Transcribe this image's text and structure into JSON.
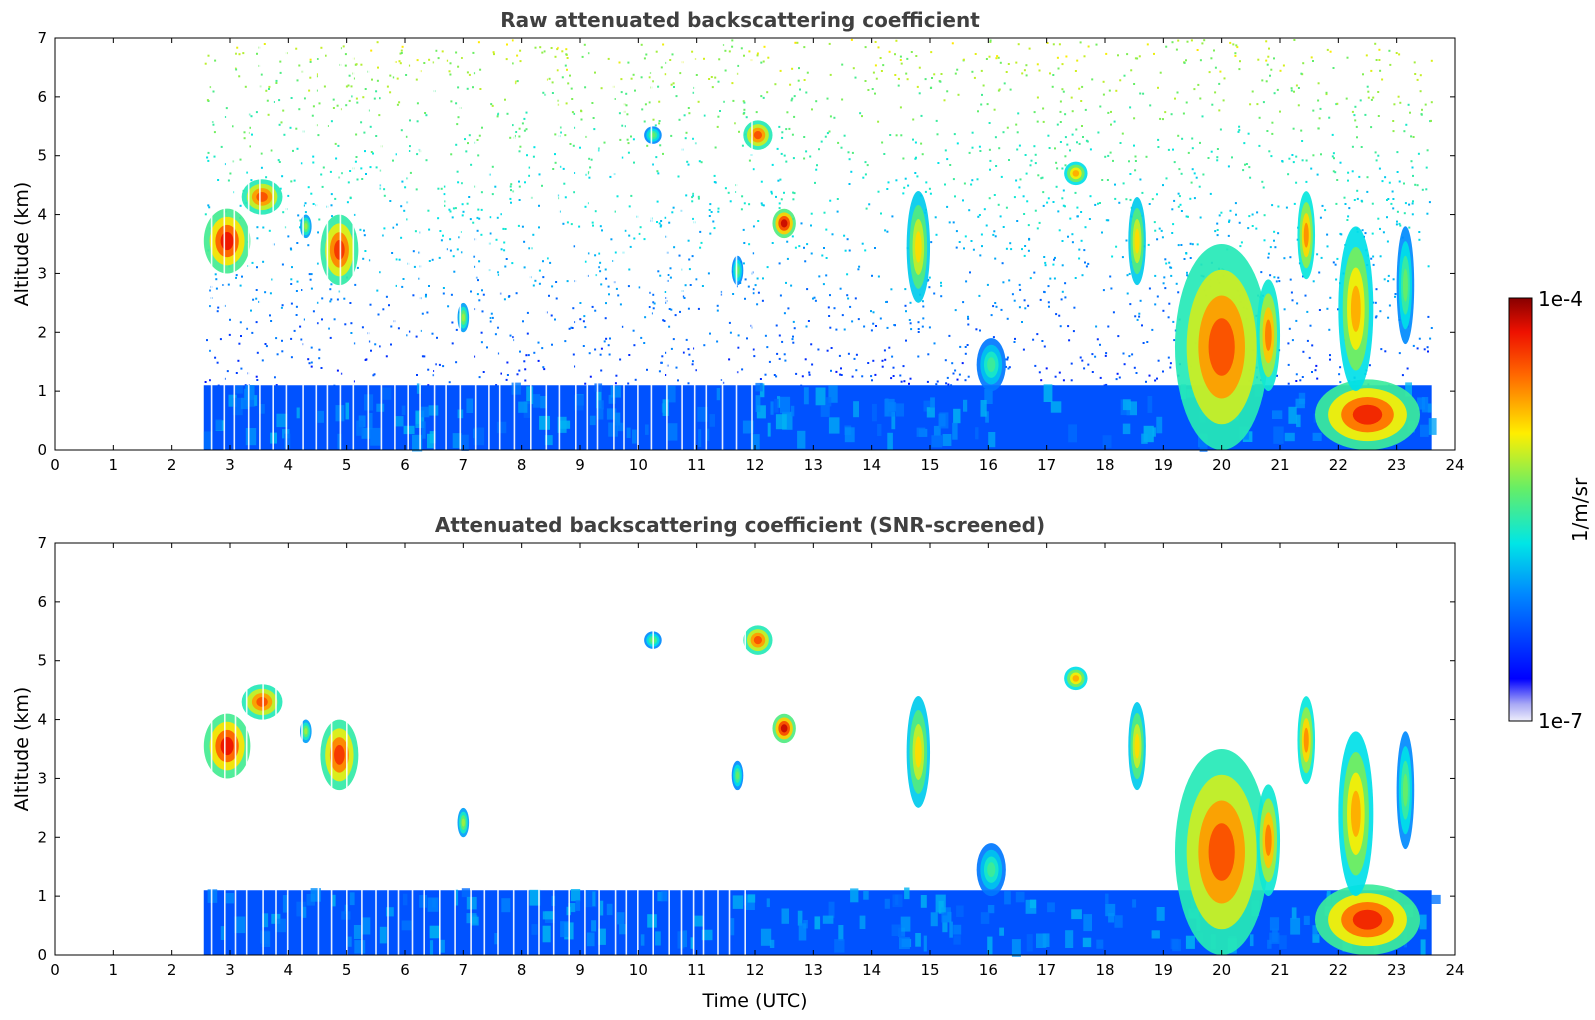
{
  "chart_data": [
    {
      "type": "heatmap",
      "title": "Raw attenuated backscattering coefficient",
      "xlabel": "",
      "ylabel": "Altitude (km)",
      "xlim": [
        0,
        24
      ],
      "ylim": [
        0,
        7
      ],
      "xticks": [
        "0",
        "1",
        "2",
        "3",
        "4",
        "5",
        "6",
        "7",
        "8",
        "9",
        "10",
        "11",
        "12",
        "13",
        "14",
        "15",
        "16",
        "17",
        "18",
        "19",
        "20",
        "21",
        "22",
        "23",
        "24"
      ],
      "yticks": [
        "0",
        "1",
        "2",
        "3",
        "4",
        "5",
        "6",
        "7"
      ],
      "data_start_hour": 2.55,
      "data_end_hour": 23.6,
      "noise_background": true,
      "features": [
        {
          "t0": 2.55,
          "t1": 3.35,
          "h0": 3.0,
          "h1": 4.1,
          "level": 0.92
        },
        {
          "t0": 3.2,
          "t1": 3.9,
          "h0": 4.0,
          "h1": 4.6,
          "level": 0.85
        },
        {
          "t0": 4.55,
          "t1": 5.2,
          "h0": 2.8,
          "h1": 4.0,
          "level": 0.88
        },
        {
          "t0": 4.2,
          "t1": 4.4,
          "h0": 3.6,
          "h1": 4.0,
          "level": 0.6
        },
        {
          "t0": 6.9,
          "t1": 7.1,
          "h0": 2.0,
          "h1": 2.5,
          "level": 0.6
        },
        {
          "t0": 10.1,
          "t1": 10.4,
          "h0": 5.2,
          "h1": 5.5,
          "level": 0.55
        },
        {
          "t0": 11.8,
          "t1": 12.3,
          "h0": 5.1,
          "h1": 5.6,
          "level": 0.85
        },
        {
          "t0": 12.3,
          "t1": 12.7,
          "h0": 3.6,
          "h1": 4.1,
          "level": 0.95
        },
        {
          "t0": 11.6,
          "t1": 11.8,
          "h0": 2.8,
          "h1": 3.3,
          "level": 0.55
        },
        {
          "t0": 14.6,
          "t1": 15.0,
          "h0": 2.5,
          "h1": 4.4,
          "level": 0.7
        },
        {
          "t0": 15.8,
          "t1": 16.3,
          "h0": 1.0,
          "h1": 1.9,
          "level": 0.5
        },
        {
          "t0": 17.3,
          "t1": 17.7,
          "h0": 4.5,
          "h1": 4.9,
          "level": 0.75
        },
        {
          "t0": 18.4,
          "t1": 18.7,
          "h0": 2.8,
          "h1": 4.3,
          "level": 0.7
        },
        {
          "t0": 19.2,
          "t1": 20.8,
          "h0": 0.0,
          "h1": 3.5,
          "level": 0.85
        },
        {
          "t0": 20.6,
          "t1": 21.0,
          "h0": 1.0,
          "h1": 2.9,
          "level": 0.8
        },
        {
          "t0": 21.3,
          "t1": 21.6,
          "h0": 2.9,
          "h1": 4.4,
          "level": 0.78
        },
        {
          "t0": 21.6,
          "t1": 23.4,
          "h0": 0.0,
          "h1": 1.2,
          "level": 0.9
        },
        {
          "t0": 22.0,
          "t1": 22.6,
          "h0": 1.0,
          "h1": 3.8,
          "level": 0.75
        },
        {
          "t0": 23.0,
          "t1": 23.3,
          "h0": 1.8,
          "h1": 3.8,
          "level": 0.55
        }
      ],
      "boundary_layer": {
        "h0": 0.0,
        "h1": 1.1,
        "level": 0.22
      }
    },
    {
      "type": "heatmap",
      "title": "Attenuated backscattering coefficient (SNR-screened)",
      "xlabel": "Time (UTC)",
      "ylabel": "Altitude (km)",
      "xlim": [
        0,
        24
      ],
      "ylim": [
        0,
        7
      ],
      "xticks": [
        "0",
        "1",
        "2",
        "3",
        "4",
        "5",
        "6",
        "7",
        "8",
        "9",
        "10",
        "11",
        "12",
        "13",
        "14",
        "15",
        "16",
        "17",
        "18",
        "19",
        "20",
        "21",
        "22",
        "23",
        "24"
      ],
      "yticks": [
        "0",
        "1",
        "2",
        "3",
        "4",
        "5",
        "6",
        "7"
      ],
      "data_start_hour": 2.55,
      "data_end_hour": 23.6,
      "noise_background": false,
      "features": [
        {
          "t0": 2.55,
          "t1": 3.35,
          "h0": 3.0,
          "h1": 4.1,
          "level": 0.92
        },
        {
          "t0": 3.2,
          "t1": 3.9,
          "h0": 4.0,
          "h1": 4.6,
          "level": 0.85
        },
        {
          "t0": 4.55,
          "t1": 5.2,
          "h0": 2.8,
          "h1": 4.0,
          "level": 0.88
        },
        {
          "t0": 4.2,
          "t1": 4.4,
          "h0": 3.6,
          "h1": 4.0,
          "level": 0.6
        },
        {
          "t0": 6.9,
          "t1": 7.1,
          "h0": 2.0,
          "h1": 2.5,
          "level": 0.6
        },
        {
          "t0": 10.1,
          "t1": 10.4,
          "h0": 5.2,
          "h1": 5.5,
          "level": 0.55
        },
        {
          "t0": 11.8,
          "t1": 12.3,
          "h0": 5.1,
          "h1": 5.6,
          "level": 0.85
        },
        {
          "t0": 12.3,
          "t1": 12.7,
          "h0": 3.6,
          "h1": 4.1,
          "level": 0.95
        },
        {
          "t0": 11.6,
          "t1": 11.8,
          "h0": 2.8,
          "h1": 3.3,
          "level": 0.55
        },
        {
          "t0": 14.6,
          "t1": 15.0,
          "h0": 2.5,
          "h1": 4.4,
          "level": 0.7
        },
        {
          "t0": 15.8,
          "t1": 16.3,
          "h0": 1.0,
          "h1": 1.9,
          "level": 0.5
        },
        {
          "t0": 17.3,
          "t1": 17.7,
          "h0": 4.5,
          "h1": 4.9,
          "level": 0.75
        },
        {
          "t0": 18.4,
          "t1": 18.7,
          "h0": 2.8,
          "h1": 4.3,
          "level": 0.7
        },
        {
          "t0": 19.2,
          "t1": 20.8,
          "h0": 0.0,
          "h1": 3.5,
          "level": 0.85
        },
        {
          "t0": 20.6,
          "t1": 21.0,
          "h0": 1.0,
          "h1": 2.9,
          "level": 0.8
        },
        {
          "t0": 21.3,
          "t1": 21.6,
          "h0": 2.9,
          "h1": 4.4,
          "level": 0.78
        },
        {
          "t0": 21.6,
          "t1": 23.4,
          "h0": 0.0,
          "h1": 1.2,
          "level": 0.9
        },
        {
          "t0": 22.0,
          "t1": 22.6,
          "h0": 1.0,
          "h1": 3.8,
          "level": 0.75
        },
        {
          "t0": 23.0,
          "t1": 23.3,
          "h0": 1.8,
          "h1": 3.8,
          "level": 0.55
        }
      ],
      "boundary_layer": {
        "h0": 0.0,
        "h1": 1.1,
        "level": 0.22
      }
    }
  ],
  "colorbar": {
    "max_label": "1e-4",
    "min_label": "1e-7",
    "unit_label": "1/m/sr",
    "scale": "log",
    "colormap": "jet"
  }
}
